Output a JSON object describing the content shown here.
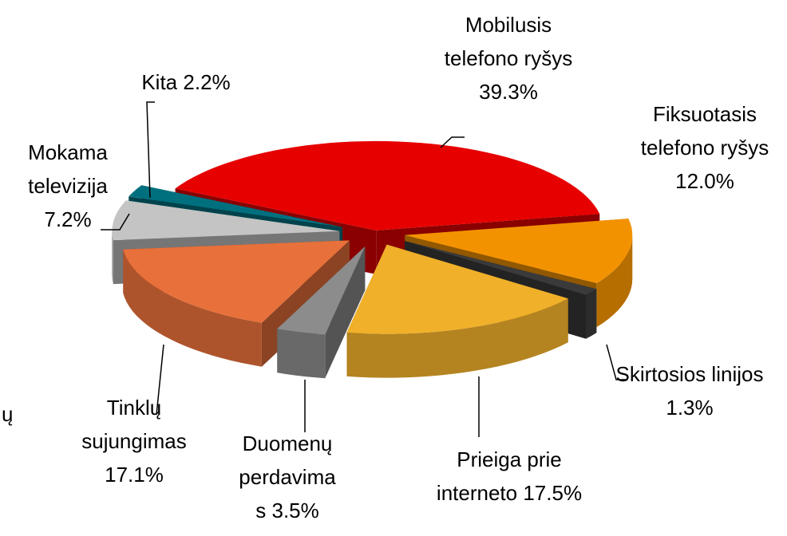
{
  "chart_data": {
    "type": "pie3d",
    "categories": [
      "Mobilusis telefono ryšys",
      "Fiksuotasis telefono ryšys",
      "Skirtosios linijos",
      "Prieiga prie interneto",
      "Duomenų perdavimas",
      "Tinklų sujungimas",
      "Mokama televizija",
      "Kita"
    ],
    "values": [
      39.3,
      12.0,
      1.3,
      17.5,
      3.5,
      17.1,
      7.2,
      2.2
    ],
    "value_labels": [
      "39.3%",
      "12.0%",
      "1.3%",
      "17.5%",
      "3.5%",
      "17.1%",
      "7.2%",
      "2.2%"
    ],
    "colors": [
      "#e60000",
      "#f39200",
      "#3a3a3a",
      "#f0b02a",
      "#8c8c8c",
      "#e8703a",
      "#c4c4c4",
      "#00707f"
    ],
    "annotations": [
      "ų"
    ]
  }
}
